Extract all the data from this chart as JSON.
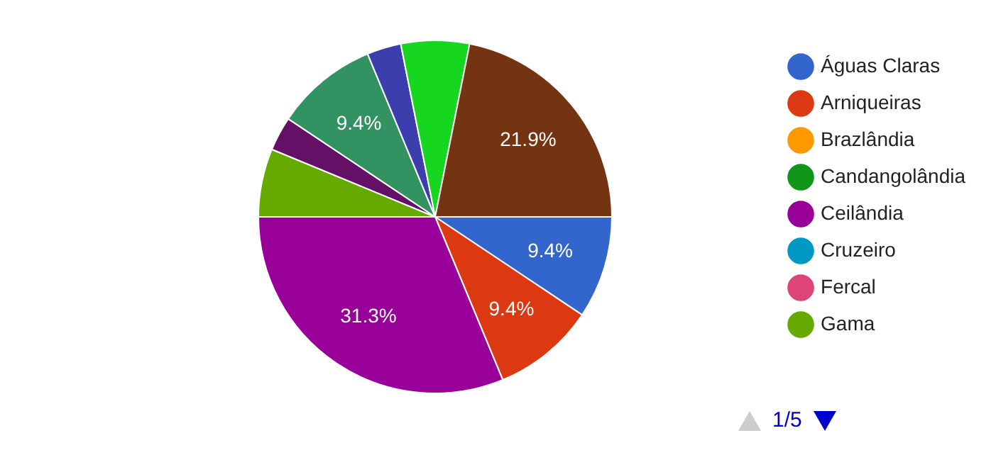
{
  "chart_data": {
    "type": "pie",
    "categories": [
      "Águas Claras",
      "Arniqueiras",
      "Brazlândia",
      "Candangolândia",
      "Ceilândia",
      "Cruzeiro",
      "Fercal",
      "Gama",
      null,
      null,
      null,
      null,
      null
    ],
    "values": [
      9.375,
      9.375,
      0,
      0,
      31.25,
      0,
      0,
      6.25,
      3.125,
      9.375,
      3.125,
      6.25,
      21.875
    ],
    "colors": [
      "#3366cc",
      "#dc3912",
      "#ff9900",
      "#109618",
      "#990099",
      "#0099c6",
      "#dd4477",
      "#66aa00",
      "#651067",
      "#329262",
      "#3b3eac",
      "#16d620",
      "#743411"
    ],
    "value_labels": [
      "9.4%",
      "9.4%",
      null,
      null,
      "31.3%",
      null,
      null,
      null,
      null,
      "9.4%",
      null,
      null,
      "21.9%"
    ],
    "legend": "right",
    "annotations": [
      "1/5"
    ]
  }
}
